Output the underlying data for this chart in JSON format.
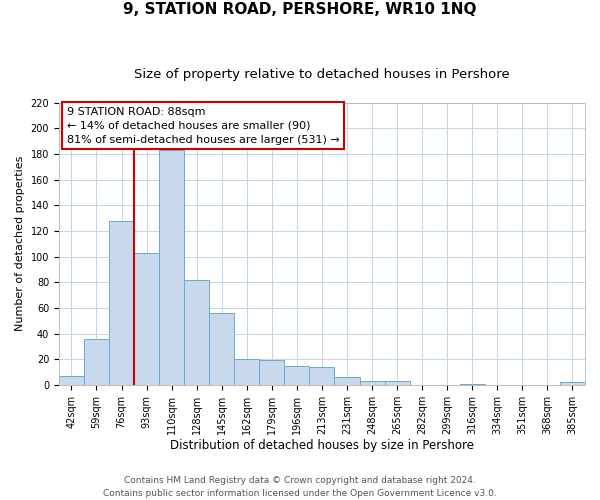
{
  "title": "9, STATION ROAD, PERSHORE, WR10 1NQ",
  "subtitle": "Size of property relative to detached houses in Pershore",
  "xlabel": "Distribution of detached houses by size in Pershore",
  "ylabel": "Number of detached properties",
  "bar_labels": [
    "42sqm",
    "59sqm",
    "76sqm",
    "93sqm",
    "110sqm",
    "128sqm",
    "145sqm",
    "162sqm",
    "179sqm",
    "196sqm",
    "213sqm",
    "231sqm",
    "248sqm",
    "265sqm",
    "282sqm",
    "299sqm",
    "316sqm",
    "334sqm",
    "351sqm",
    "368sqm",
    "385sqm"
  ],
  "bar_heights": [
    7,
    36,
    128,
    103,
    183,
    82,
    56,
    20,
    19,
    15,
    14,
    6,
    3,
    3,
    0,
    0,
    1,
    0,
    0,
    0,
    2
  ],
  "bar_color": "#c8d9ee",
  "bar_edge_color": "#6aaad4",
  "vline_x_index": 2.5,
  "vline_color": "#cc0000",
  "ylim": [
    0,
    220
  ],
  "yticks": [
    0,
    20,
    40,
    60,
    80,
    100,
    120,
    140,
    160,
    180,
    200,
    220
  ],
  "annotation_title": "9 STATION ROAD: 88sqm",
  "annotation_line1": "← 14% of detached houses are smaller (90)",
  "annotation_line2": "81% of semi-detached houses are larger (531) →",
  "annotation_box_facecolor": "#ffffff",
  "annotation_box_edgecolor": "#cc0000",
  "footer_line1": "Contains HM Land Registry data © Crown copyright and database right 2024.",
  "footer_line2": "Contains public sector information licensed under the Open Government Licence v3.0.",
  "background_color": "#ffffff",
  "grid_color": "#c4d4e8",
  "title_fontsize": 11,
  "subtitle_fontsize": 9.5,
  "xlabel_fontsize": 8.5,
  "ylabel_fontsize": 8,
  "tick_fontsize": 7,
  "annotation_fontsize": 8,
  "footer_fontsize": 6.5
}
